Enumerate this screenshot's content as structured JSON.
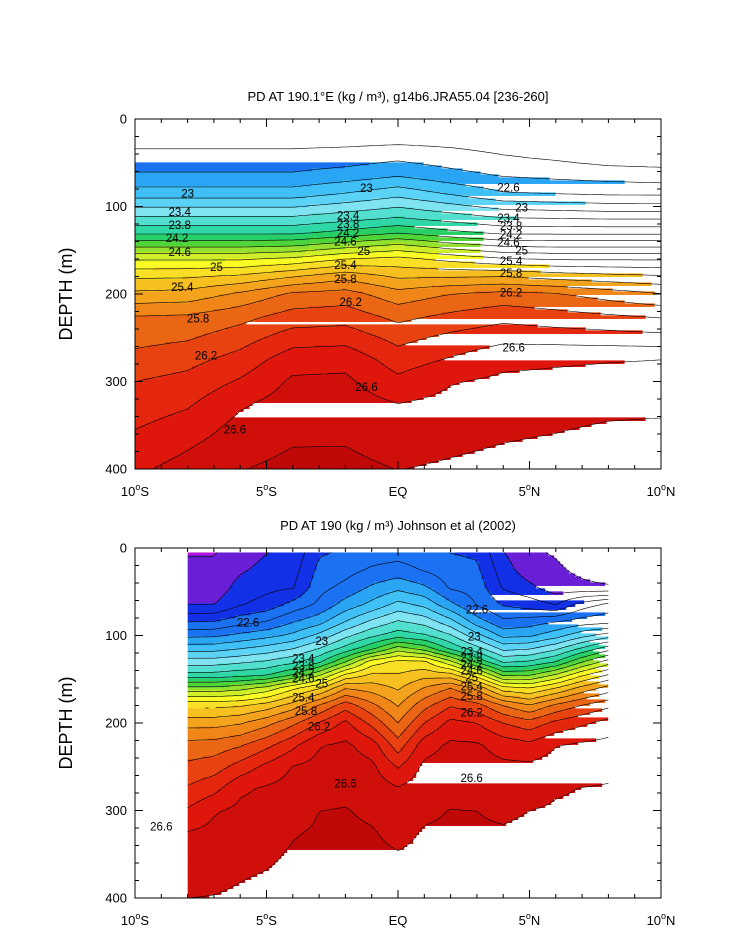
{
  "colors": {
    "levels": [
      {
        "from": 21.6,
        "color": "#b513d8"
      },
      {
        "from": 21.8,
        "color": "#6a1fd6"
      },
      {
        "from": 22.0,
        "color": "#1231e6"
      },
      {
        "from": 22.4,
        "color": "#1a72f2"
      },
      {
        "from": 22.8,
        "color": "#2aa5f4"
      },
      {
        "from": 23.0,
        "color": "#3fc0f6"
      },
      {
        "from": 23.2,
        "color": "#5ad3f6"
      },
      {
        "from": 23.4,
        "color": "#7fe3f2"
      },
      {
        "from": 23.6,
        "color": "#52dfcf"
      },
      {
        "from": 23.8,
        "color": "#2fd7a7"
      },
      {
        "from": 24.0,
        "color": "#27cf66"
      },
      {
        "from": 24.2,
        "color": "#4fd43a"
      },
      {
        "from": 24.4,
        "color": "#94e22f"
      },
      {
        "from": 24.6,
        "color": "#cdee28"
      },
      {
        "from": 24.8,
        "color": "#fafa24"
      },
      {
        "from": 25.0,
        "color": "#f9df25"
      },
      {
        "from": 25.2,
        "color": "#f5c020"
      },
      {
        "from": 25.4,
        "color": "#f3a41c"
      },
      {
        "from": 25.6,
        "color": "#f08618"
      },
      {
        "from": 25.8,
        "color": "#ea6614"
      },
      {
        "from": 26.0,
        "color": "#e84210"
      },
      {
        "from": 26.2,
        "color": "#e4270e"
      },
      {
        "from": 26.4,
        "color": "#de160c"
      },
      {
        "from": 26.6,
        "color": "#cf0f0a"
      },
      {
        "from": 26.8,
        "color": "#c00808"
      }
    ]
  },
  "chart_data": [
    {
      "type": "heatmap",
      "title": "PD AT 190.1°E (kg / m³), g14b6.JRA55.04 [236-260]",
      "xlabel": "",
      "ylabel": "DEPTH (m)",
      "xlim": [
        -10,
        10
      ],
      "ylim": [
        400,
        0
      ],
      "x_ticks": [
        -10,
        -5,
        0,
        5,
        10
      ],
      "x_tick_labels": [
        "10°S",
        "5°S",
        "EQ",
        "5°N",
        "10°N"
      ],
      "y_ticks": [
        0,
        100,
        200,
        300,
        400
      ],
      "y_tick_labels": [
        "0",
        "100",
        "200",
        "300",
        "400"
      ],
      "data_xrange": [
        -10,
        10
      ],
      "data_top_depth": 5,
      "x": [
        -10,
        -8,
        -6,
        -4,
        -2,
        0,
        2,
        4,
        6,
        8,
        10
      ],
      "depth": [
        5,
        25,
        45,
        65,
        85,
        100,
        115,
        130,
        145,
        160,
        180,
        200,
        225,
        250,
        275,
        300,
        325,
        350,
        375,
        400
      ],
      "profile_anchors": [
        {
          "density": 22.5,
          "depth": [
            20,
            20,
            20,
            20,
            20,
            20,
            20,
            30,
            36,
            44,
            48
          ]
        },
        {
          "density": 22.8,
          "depth": [
            62,
            62,
            62,
            62,
            56,
            48,
            58,
            66,
            70,
            72,
            74
          ]
        },
        {
          "density": 23.0,
          "depth": [
            80,
            80,
            80,
            80,
            74,
            66,
            76,
            84,
            86,
            88,
            88
          ]
        },
        {
          "density": 24.0,
          "depth": [
            132,
            132,
            132,
            132,
            128,
            124,
            128,
            132,
            132,
            132,
            132
          ]
        },
        {
          "density": 25.0,
          "depth": [
            168,
            168,
            168,
            165,
            160,
            156,
            162,
            166,
            168,
            168,
            168
          ]
        },
        {
          "density": 25.8,
          "depth": [
            225,
            222,
            208,
            196,
            190,
            208,
            200,
            194,
            198,
            204,
            210
          ]
        },
        {
          "density": 26.2,
          "depth": [
            300,
            285,
            262,
            238,
            236,
            258,
            242,
            232,
            238,
            242,
            245
          ]
        },
        {
          "density": 26.6,
          "depth": [
            410,
            378,
            330,
            285,
            282,
            325,
            302,
            282,
            278,
            276,
            275
          ]
        },
        {
          "density": 26.9,
          "depth": [
            480,
            470,
            440,
            420,
            420,
            440,
            430,
            415,
            400,
            380,
            375
          ]
        }
      ],
      "contour_interval": 0.2,
      "contour_labels": [
        {
          "text": "23",
          "x": -8.0,
          "y": 85
        },
        {
          "text": "23.4",
          "x": -8.3,
          "y": 106
        },
        {
          "text": "23.8",
          "x": -8.3,
          "y": 121
        },
        {
          "text": "24.2",
          "x": -8.4,
          "y": 136
        },
        {
          "text": "24.6",
          "x": -8.3,
          "y": 152
        },
        {
          "text": "25",
          "x": -6.9,
          "y": 169
        },
        {
          "text": "25.4",
          "x": -8.2,
          "y": 192
        },
        {
          "text": "25.8",
          "x": -7.6,
          "y": 228
        },
        {
          "text": "26.2",
          "x": -7.3,
          "y": 270
        },
        {
          "text": "26.6",
          "x": -6.2,
          "y": 355
        },
        {
          "text": "23",
          "x": -1.2,
          "y": 79
        },
        {
          "text": "23.4",
          "x": -1.9,
          "y": 110
        },
        {
          "text": "23.8",
          "x": -1.9,
          "y": 120
        },
        {
          "text": "24.2",
          "x": -1.9,
          "y": 130
        },
        {
          "text": "24.6",
          "x": -2.0,
          "y": 140
        },
        {
          "text": "25",
          "x": -1.3,
          "y": 151
        },
        {
          "text": "25.4",
          "x": -2.0,
          "y": 167
        },
        {
          "text": "25.8",
          "x": -2.0,
          "y": 183
        },
        {
          "text": "26.2",
          "x": -1.8,
          "y": 209
        },
        {
          "text": "26.6",
          "x": -1.2,
          "y": 306
        },
        {
          "text": "22.6",
          "x": 4.2,
          "y": 78
        },
        {
          "text": "23",
          "x": 4.7,
          "y": 101
        },
        {
          "text": "23.4",
          "x": 4.2,
          "y": 113
        },
        {
          "text": "23.8",
          "x": 4.3,
          "y": 122
        },
        {
          "text": "24.2",
          "x": 4.3,
          "y": 132
        },
        {
          "text": "24.6",
          "x": 4.2,
          "y": 141
        },
        {
          "text": "25",
          "x": 4.7,
          "y": 150
        },
        {
          "text": "25.4",
          "x": 4.3,
          "y": 162
        },
        {
          "text": "25.8",
          "x": 4.3,
          "y": 176
        },
        {
          "text": "26.2",
          "x": 4.3,
          "y": 198
        },
        {
          "text": "26.6",
          "x": 4.4,
          "y": 261
        }
      ]
    },
    {
      "type": "heatmap",
      "title": "PD AT 190 (kg / m³) Johnson et al (2002)",
      "xlabel": "",
      "ylabel": "DEPTH (m)",
      "xlim": [
        -10,
        10
      ],
      "ylim": [
        400,
        0
      ],
      "x_ticks": [
        -10,
        -5,
        0,
        5,
        10
      ],
      "x_tick_labels": [
        "10°S",
        "5°S",
        "EQ",
        "5°N",
        "10°N"
      ],
      "y_ticks": [
        0,
        100,
        200,
        300,
        400
      ],
      "y_tick_labels": [
        "0",
        "100",
        "200",
        "300",
        "400"
      ],
      "data_xrange": [
        -8,
        8
      ],
      "data_top_depth": 5,
      "x": [
        -8,
        -7,
        -6,
        -5,
        -4,
        -3,
        -2,
        -1,
        0,
        1,
        2,
        3,
        4,
        5,
        6,
        7,
        8
      ],
      "depth": [
        5,
        25,
        45,
        65,
        85,
        100,
        115,
        130,
        145,
        160,
        180,
        200,
        225,
        250,
        275,
        300,
        325,
        350,
        375,
        400
      ],
      "profile_anchors": [
        {
          "density": 21.7,
          "depth": [
            -40,
            -40,
            -40,
            -40,
            -40,
            -40,
            -40,
            -40,
            -40,
            -40,
            -40,
            -40,
            -40,
            -40,
            -30,
            10,
            25
          ]
        },
        {
          "density": 21.9,
          "depth": [
            60,
            60,
            12,
            -20,
            -40,
            -40,
            -40,
            -40,
            -40,
            -40,
            -40,
            -40,
            -20,
            30,
            55,
            60,
            58
          ]
        },
        {
          "density": 22.2,
          "depth": [
            75,
            75,
            68,
            60,
            50,
            -40,
            -40,
            -40,
            -40,
            -40,
            -40,
            -40,
            50,
            60,
            65,
            62,
            62
          ]
        },
        {
          "density": 22.6,
          "depth": [
            94,
            93,
            88,
            84,
            72,
            62,
            40,
            22,
            18,
            28,
            52,
            68,
            82,
            78,
            72,
            66,
            60
          ]
        },
        {
          "density": 23.0,
          "depth": [
            110,
            110,
            107,
            103,
            98,
            89,
            75,
            62,
            50,
            57,
            72,
            90,
            103,
            102,
            96,
            90,
            88
          ]
        },
        {
          "density": 24.0,
          "depth": [
            150,
            150,
            148,
            146,
            141,
            132,
            121,
            112,
            105,
            109,
            117,
            127,
            138,
            136,
            130,
            120,
            112
          ]
        },
        {
          "density": 25.0,
          "depth": [
            172,
            172,
            171,
            167,
            161,
            155,
            144,
            132,
            125,
            128,
            137,
            147,
            158,
            160,
            154,
            146,
            138
          ]
        },
        {
          "density": 25.8,
          "depth": [
            215,
            215,
            211,
            203,
            192,
            179,
            166,
            176,
            200,
            170,
            160,
            166,
            180,
            186,
            178,
            170,
            164
          ]
        },
        {
          "density": 26.2,
          "depth": [
            272,
            261,
            243,
            229,
            213,
            199,
            184,
            204,
            235,
            200,
            181,
            186,
            200,
            206,
            196,
            189,
            182
          ]
        },
        {
          "density": 26.6,
          "depth": [
            322,
            302,
            278,
            262,
            246,
            226,
            210,
            232,
            268,
            232,
            210,
            214,
            232,
            236,
            226,
            216,
            208
          ]
        },
        {
          "density": 26.8,
          "depth": [
            400,
            395,
            380,
            365,
            330,
            300,
            290,
            310,
            340,
            310,
            295,
            300,
            310,
            300,
            280,
            270,
            260
          ]
        },
        {
          "density": 26.9,
          "depth": [
            470,
            468,
            460,
            455,
            445,
            440,
            430,
            440,
            460,
            440,
            440,
            440,
            415,
            390,
            380,
            380,
            380
          ]
        }
      ],
      "contour_interval": 0.2,
      "contour_labels": [
        {
          "text": "22.6",
          "x": -5.7,
          "y": 85
        },
        {
          "text": "23",
          "x": -2.9,
          "y": 106
        },
        {
          "text": "26.6",
          "x": -9.0,
          "y": 318
        },
        {
          "text": "23.4",
          "x": -3.6,
          "y": 126
        },
        {
          "text": "23.8",
          "x": -3.6,
          "y": 135
        },
        {
          "text": "24.2",
          "x": -3.6,
          "y": 142
        },
        {
          "text": "24.6",
          "x": -3.6,
          "y": 149
        },
        {
          "text": "25",
          "x": -2.9,
          "y": 155
        },
        {
          "text": "25.4",
          "x": -3.6,
          "y": 171
        },
        {
          "text": "25.8",
          "x": -3.5,
          "y": 186
        },
        {
          "text": "26.2",
          "x": -3.0,
          "y": 204
        },
        {
          "text": "26.6",
          "x": -2.0,
          "y": 269
        },
        {
          "text": "22.6",
          "x": 3.0,
          "y": 70
        },
        {
          "text": "23",
          "x": 2.9,
          "y": 101
        },
        {
          "text": "23.4",
          "x": 2.8,
          "y": 118
        },
        {
          "text": "23.8",
          "x": 2.8,
          "y": 125
        },
        {
          "text": "24.2",
          "x": 2.8,
          "y": 133
        },
        {
          "text": "24.6",
          "x": 2.8,
          "y": 140
        },
        {
          "text": "25",
          "x": 2.8,
          "y": 148
        },
        {
          "text": "25.4",
          "x": 2.8,
          "y": 158
        },
        {
          "text": "25.8",
          "x": 2.8,
          "y": 169
        },
        {
          "text": "26.2",
          "x": 2.8,
          "y": 188
        },
        {
          "text": "26.6",
          "x": 2.8,
          "y": 263
        }
      ]
    }
  ]
}
